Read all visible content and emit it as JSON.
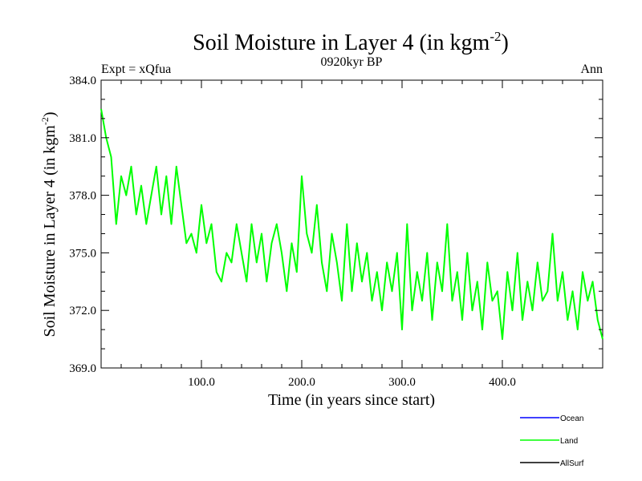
{
  "chart_data": {
    "type": "line",
    "title": "Soil Moisture in Layer 4 (in kgm",
    "title_sup": "-2",
    "title_end": ")",
    "subtitle": "0920kyr BP",
    "left_label": "Expt = xQfua",
    "right_label": "Ann",
    "xlabel": "Time (in years since start)",
    "ylabel": "Soil Moisture in Layer 4 (in kgm",
    "ylabel_sup": "-2",
    "ylabel_end": ")",
    "xlim": [
      0,
      500
    ],
    "ylim": [
      369.0,
      384.0
    ],
    "xticks": [
      100.0,
      200.0,
      300.0,
      400.0
    ],
    "xtick_labels": [
      "100.0",
      "200.0",
      "300.0",
      "400.0"
    ],
    "yticks": [
      369.0,
      372.0,
      375.0,
      378.0,
      381.0,
      384.0
    ],
    "ytick_labels": [
      "369.0",
      "372.0",
      "375.0",
      "378.0",
      "381.0",
      "384.0"
    ],
    "grid": false,
    "legend": {
      "placement": "bottom-right",
      "entries": [
        {
          "name": "Ocean",
          "color": "#0000ff"
        },
        {
          "name": "Land",
          "color": "#00ff00"
        },
        {
          "name": "AllSurf",
          "color": "#000000"
        }
      ]
    },
    "series": [
      {
        "name": "Land",
        "color": "#00ff00",
        "x": [
          0,
          5,
          10,
          15,
          20,
          25,
          30,
          35,
          40,
          45,
          50,
          55,
          60,
          65,
          70,
          75,
          80,
          85,
          90,
          95,
          100,
          105,
          110,
          115,
          120,
          125,
          130,
          135,
          140,
          145,
          150,
          155,
          160,
          165,
          170,
          175,
          180,
          185,
          190,
          195,
          200,
          205,
          210,
          215,
          220,
          225,
          230,
          235,
          240,
          245,
          250,
          255,
          260,
          265,
          270,
          275,
          280,
          285,
          290,
          295,
          300,
          305,
          310,
          315,
          320,
          325,
          330,
          335,
          340,
          345,
          350,
          355,
          360,
          365,
          370,
          375,
          380,
          385,
          390,
          395,
          400,
          405,
          410,
          415,
          420,
          425,
          430,
          435,
          440,
          445,
          450,
          455,
          460,
          465,
          470,
          475,
          480,
          485,
          490,
          495,
          500
        ],
        "values": [
          382.5,
          381.0,
          380.0,
          376.5,
          379.0,
          378.0,
          379.5,
          377.0,
          378.5,
          376.5,
          378.0,
          379.5,
          377.0,
          379.0,
          376.5,
          379.5,
          377.5,
          375.5,
          376.0,
          375.0,
          377.5,
          375.5,
          376.5,
          374.0,
          373.5,
          375.0,
          374.5,
          376.5,
          375.0,
          373.5,
          376.5,
          374.5,
          376.0,
          373.5,
          375.5,
          376.5,
          375.0,
          373.0,
          375.5,
          374.0,
          379.0,
          376.0,
          375.0,
          377.5,
          374.5,
          373.0,
          376.0,
          374.5,
          372.5,
          376.5,
          373.0,
          375.5,
          373.5,
          375.0,
          372.5,
          374.0,
          372.0,
          374.5,
          373.0,
          375.0,
          371.0,
          376.5,
          372.0,
          374.0,
          372.5,
          375.0,
          371.5,
          374.5,
          373.0,
          376.5,
          372.5,
          374.0,
          371.5,
          375.0,
          372.0,
          373.5,
          371.0,
          374.5,
          372.5,
          373.0,
          370.5,
          374.0,
          372.0,
          375.0,
          371.5,
          373.5,
          372.0,
          374.5,
          372.5,
          373.0,
          376.0,
          372.5,
          374.0,
          371.5,
          373.0,
          371.0,
          374.0,
          372.5,
          373.5,
          371.5,
          370.5
        ]
      }
    ]
  }
}
